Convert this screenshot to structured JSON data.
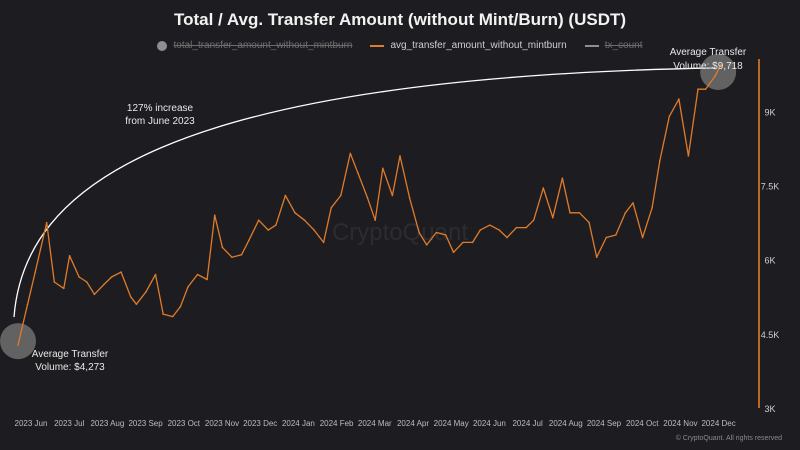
{
  "title": "Total / Avg. Transfer Amount (without Mint/Burn) (USDT)",
  "legend": [
    {
      "label": "total_transfer_amount_without_mintburn",
      "active": false,
      "color": "#8f8f8f",
      "shape": "dot"
    },
    {
      "label": "avg_transfer_amount_without_mintburn",
      "active": true,
      "color": "#e07b2a",
      "shape": "line"
    },
    {
      "label": "tx_count",
      "active": false,
      "color": "#8f8f8f",
      "shape": "line"
    }
  ],
  "watermark": "CryptoQuant",
  "footer": "© CryptoQuant. All rights reserved",
  "annotations": {
    "start_line1": "Average Transfer",
    "start_line2": "Volume: $4,273",
    "end_line1": "Average Transfer",
    "end_line2": "Volume: $9,718",
    "increase_line1": "127% increase",
    "increase_line2": "from June 2023"
  },
  "colors": {
    "series": "#e07b2a",
    "background": "#1d1d21",
    "arc": "#ffffff"
  },
  "chart_data": {
    "type": "line",
    "title": "Total / Avg. Transfer Amount (without Mint/Burn) (USDT)",
    "x_ticks": [
      "2023 Jun",
      "2023 Jul",
      "2023 Aug",
      "2023 Sep",
      "2023 Oct",
      "2023 Nov",
      "2023 Dec",
      "2024 Jan",
      "2024 Feb",
      "2024 Mar",
      "2024 Apr",
      "2024 May",
      "2024 Jun",
      "2024 Jul",
      "2024 Aug",
      "2024 Sep",
      "2024 Oct",
      "2024 Nov",
      "2024 Dec"
    ],
    "y_ticks": [
      "3K",
      "4.5K",
      "6K",
      "7.5K",
      "9K"
    ],
    "y_tick_values": [
      3000,
      4500,
      6000,
      7500,
      9000
    ],
    "ylim": [
      3000,
      10000
    ],
    "y_axis_side": "right",
    "grid": false,
    "legend_position": "top-center",
    "x_range": [
      0,
      18.6
    ],
    "series": [
      {
        "name": "avg_transfer_amount_without_mintburn",
        "x": [
          0.0,
          0.25,
          0.45,
          0.75,
          0.95,
          1.2,
          1.35,
          1.6,
          1.8,
          2.0,
          2.25,
          2.45,
          2.7,
          2.95,
          3.1,
          3.35,
          3.6,
          3.8,
          4.05,
          4.25,
          4.45,
          4.7,
          4.95,
          5.15,
          5.35,
          5.6,
          5.85,
          6.05,
          6.3,
          6.55,
          6.75,
          7.0,
          7.25,
          7.5,
          7.75,
          8.0,
          8.2,
          8.45,
          8.7,
          8.9,
          9.15,
          9.35,
          9.55,
          9.8,
          10.0,
          10.25,
          10.5,
          10.7,
          10.95,
          11.2,
          11.4,
          11.65,
          11.9,
          12.1,
          12.35,
          12.6,
          12.8,
          13.05,
          13.3,
          13.5,
          13.75,
          14.0,
          14.25,
          14.45,
          14.7,
          14.95,
          15.15,
          15.4,
          15.65,
          15.9,
          16.1,
          16.35,
          16.6,
          16.8,
          17.05,
          17.3,
          17.55,
          17.8,
          18.0,
          18.25,
          18.4
        ],
        "values": [
          4273,
          5100,
          5750,
          6750,
          5550,
          5420,
          6080,
          5650,
          5550,
          5300,
          5500,
          5650,
          5750,
          5250,
          5100,
          5350,
          5700,
          4900,
          4850,
          5050,
          5450,
          5700,
          5600,
          6900,
          6250,
          6050,
          6100,
          6400,
          6800,
          6600,
          6700,
          7300,
          6950,
          6800,
          6600,
          6350,
          7050,
          7300,
          8150,
          7750,
          7250,
          6800,
          7850,
          7300,
          8100,
          7250,
          6550,
          6300,
          6550,
          6500,
          6150,
          6350,
          6350,
          6600,
          6700,
          6600,
          6450,
          6650,
          6650,
          6800,
          7450,
          6850,
          7650,
          6950,
          6950,
          6750,
          6050,
          6450,
          6500,
          6950,
          7150,
          6450,
          7050,
          8000,
          8900,
          9250,
          8100,
          9450,
          9450,
          9718,
          9950
        ]
      }
    ]
  }
}
